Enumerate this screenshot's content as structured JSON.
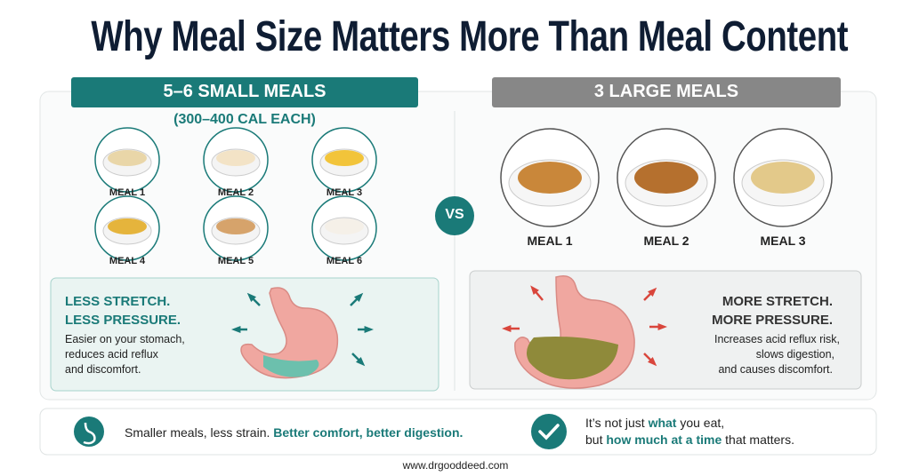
{
  "title": "Why Meal Size Matters More Than Meal Content",
  "small_meals": {
    "header": "5–6 SMALL MEALS",
    "subheader": "(300–400 CAL EACH)",
    "meals": [
      "MEAL 1",
      "MEAL 2",
      "MEAL 3",
      "MEAL 4",
      "MEAL 5",
      "MEAL 6"
    ],
    "effect": {
      "heading": [
        "LESS STRETCH.",
        "LESS PRESSURE."
      ],
      "description": [
        "Easier on your stomach,",
        "reduces acid reflux",
        "and discomfort."
      ]
    }
  },
  "vs": "VS",
  "large_meals": {
    "header": "3 LARGE MEALS",
    "meals": [
      "MEAL 1",
      "MEAL 2",
      "MEAL 3"
    ],
    "effect": {
      "heading": [
        "MORE STRETCH.",
        "MORE PRESSURE."
      ],
      "description": [
        "Increases acid reflux risk,",
        "slows digestion,",
        "and causes discomfort."
      ]
    }
  },
  "footer": {
    "left": {
      "text": "Smaller meals, less strain.",
      "highlight": "Better comfort, better digestion."
    },
    "right": {
      "lines": [
        [
          "It’s not just ",
          "what",
          " you eat,"
        ],
        [
          "but ",
          "how much at a time",
          " that matters."
        ]
      ]
    }
  },
  "website": "www.drgooddeed.com"
}
